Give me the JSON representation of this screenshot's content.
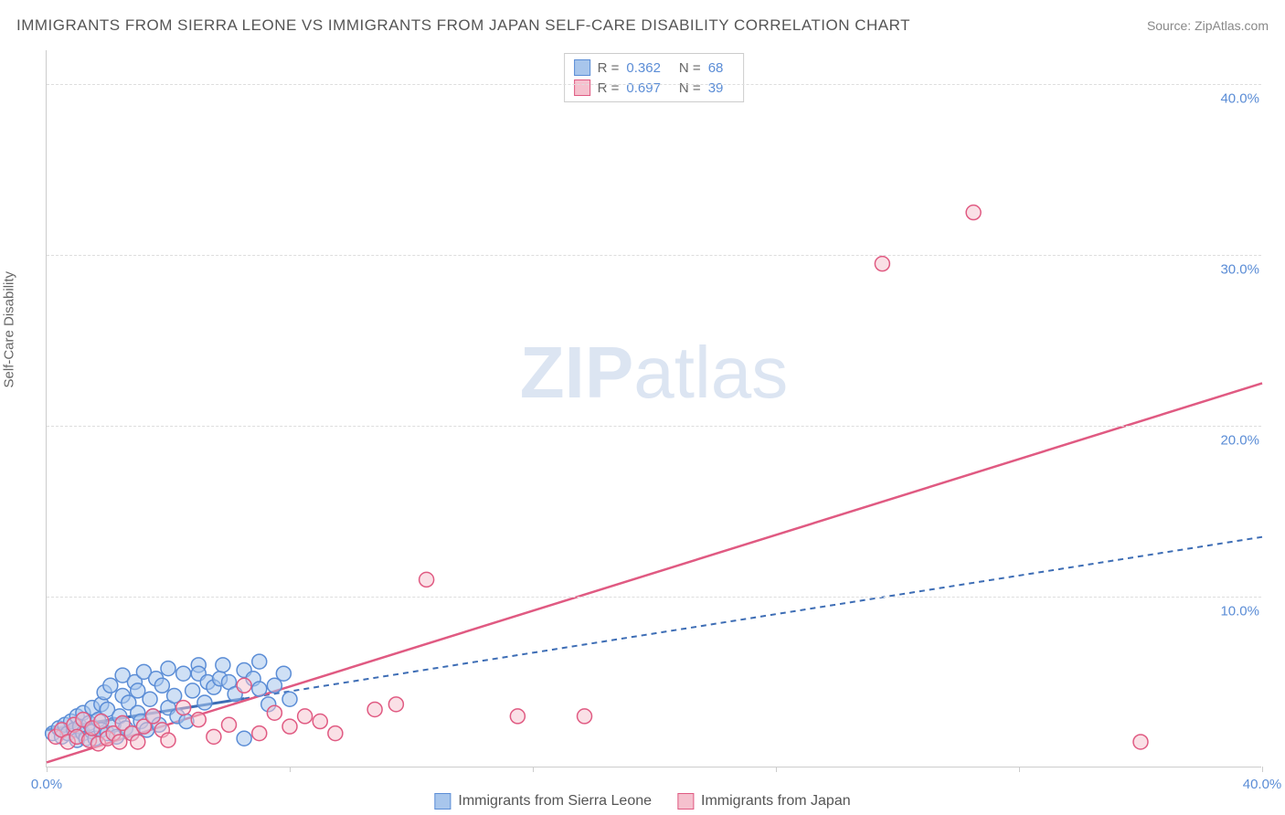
{
  "title": "IMMIGRANTS FROM SIERRA LEONE VS IMMIGRANTS FROM JAPAN SELF-CARE DISABILITY CORRELATION CHART",
  "source": "Source: ZipAtlas.com",
  "y_axis_label": "Self-Care Disability",
  "watermark": {
    "bold": "ZIP",
    "rest": "atlas"
  },
  "chart": {
    "type": "scatter",
    "xlim": [
      0,
      40
    ],
    "ylim": [
      0,
      42
    ],
    "x_ticks": [
      0,
      8,
      16,
      24,
      32,
      40
    ],
    "x_tick_labels": {
      "0": "0.0%",
      "40": "40.0%"
    },
    "y_ticks": [
      10,
      20,
      30,
      40
    ],
    "y_tick_labels": {
      "10": "10.0%",
      "20": "20.0%",
      "30": "30.0%",
      "40": "40.0%"
    },
    "grid_color": "#dddddd",
    "axis_color": "#cccccc",
    "background_color": "#ffffff",
    "marker_radius": 8,
    "marker_stroke_width": 1.5,
    "series": [
      {
        "name": "Immigrants from Sierra Leone",
        "fill_color": "#a8c6ec",
        "stroke_color": "#5b8dd6",
        "fill_opacity": 0.55,
        "trend": {
          "x1": 0,
          "y1": 2.2,
          "x2": 40,
          "y2": 13.5,
          "color": "#3d6db5",
          "width": 2,
          "dash": "6,5",
          "solid_until_x": 6.5
        },
        "points": [
          [
            0.2,
            2.0
          ],
          [
            0.4,
            2.3
          ],
          [
            0.5,
            1.8
          ],
          [
            0.6,
            2.5
          ],
          [
            0.7,
            2.0
          ],
          [
            0.8,
            2.7
          ],
          [
            0.9,
            2.2
          ],
          [
            1.0,
            3.0
          ],
          [
            1.0,
            1.6
          ],
          [
            1.1,
            2.4
          ],
          [
            1.2,
            2.0
          ],
          [
            1.2,
            3.2
          ],
          [
            1.3,
            1.7
          ],
          [
            1.4,
            2.6
          ],
          [
            1.5,
            3.5
          ],
          [
            1.5,
            2.1
          ],
          [
            1.6,
            1.7
          ],
          [
            1.7,
            2.8
          ],
          [
            1.8,
            3.7
          ],
          [
            1.8,
            2.2
          ],
          [
            1.9,
            4.4
          ],
          [
            2.0,
            2.0
          ],
          [
            2.0,
            3.4
          ],
          [
            2.1,
            4.8
          ],
          [
            2.2,
            2.5
          ],
          [
            2.3,
            1.8
          ],
          [
            2.4,
            3.0
          ],
          [
            2.5,
            4.2
          ],
          [
            2.5,
            5.4
          ],
          [
            2.6,
            2.3
          ],
          [
            2.7,
            3.8
          ],
          [
            2.8,
            2.0
          ],
          [
            2.9,
            5.0
          ],
          [
            3.0,
            3.2
          ],
          [
            3.0,
            4.5
          ],
          [
            3.1,
            2.7
          ],
          [
            3.2,
            5.6
          ],
          [
            3.3,
            2.2
          ],
          [
            3.4,
            4.0
          ],
          [
            3.5,
            3.0
          ],
          [
            3.6,
            5.2
          ],
          [
            3.7,
            2.5
          ],
          [
            3.8,
            4.8
          ],
          [
            4.0,
            3.5
          ],
          [
            4.0,
            5.8
          ],
          [
            4.2,
            4.2
          ],
          [
            4.3,
            3.0
          ],
          [
            4.5,
            5.5
          ],
          [
            4.6,
            2.7
          ],
          [
            4.8,
            4.5
          ],
          [
            5.0,
            6.0
          ],
          [
            5.0,
            5.5
          ],
          [
            5.2,
            3.8
          ],
          [
            5.3,
            5.0
          ],
          [
            5.5,
            4.7
          ],
          [
            5.7,
            5.2
          ],
          [
            5.8,
            6.0
          ],
          [
            6.0,
            5.0
          ],
          [
            6.2,
            4.3
          ],
          [
            6.5,
            5.7
          ],
          [
            6.5,
            1.7
          ],
          [
            6.8,
            5.2
          ],
          [
            7.0,
            4.6
          ],
          [
            7.0,
            6.2
          ],
          [
            7.3,
            3.7
          ],
          [
            7.5,
            4.8
          ],
          [
            7.8,
            5.5
          ],
          [
            8.0,
            4.0
          ]
        ]
      },
      {
        "name": "Immigrants from Japan",
        "fill_color": "#f5c1ce",
        "stroke_color": "#e05a82",
        "fill_opacity": 0.5,
        "trend": {
          "x1": 0,
          "y1": 0.3,
          "x2": 40,
          "y2": 22.5,
          "color": "#e05a82",
          "width": 2.5,
          "dash": null
        },
        "points": [
          [
            0.3,
            1.8
          ],
          [
            0.5,
            2.2
          ],
          [
            0.7,
            1.5
          ],
          [
            0.9,
            2.5
          ],
          [
            1.0,
            1.8
          ],
          [
            1.2,
            2.8
          ],
          [
            1.4,
            1.6
          ],
          [
            1.5,
            2.3
          ],
          [
            1.7,
            1.4
          ],
          [
            1.8,
            2.7
          ],
          [
            2.0,
            1.7
          ],
          [
            2.2,
            2.0
          ],
          [
            2.4,
            1.5
          ],
          [
            2.5,
            2.6
          ],
          [
            2.8,
            2.0
          ],
          [
            3.0,
            1.5
          ],
          [
            3.2,
            2.4
          ],
          [
            3.5,
            3.0
          ],
          [
            3.8,
            2.2
          ],
          [
            4.0,
            1.6
          ],
          [
            4.5,
            3.5
          ],
          [
            5.0,
            2.8
          ],
          [
            5.5,
            1.8
          ],
          [
            6.0,
            2.5
          ],
          [
            6.5,
            4.8
          ],
          [
            7.0,
            2.0
          ],
          [
            7.5,
            3.2
          ],
          [
            8.0,
            2.4
          ],
          [
            8.5,
            3.0
          ],
          [
            9.0,
            2.7
          ],
          [
            9.5,
            2.0
          ],
          [
            10.8,
            3.4
          ],
          [
            11.5,
            3.7
          ],
          [
            12.5,
            11.0
          ],
          [
            15.5,
            3.0
          ],
          [
            17.7,
            3.0
          ],
          [
            27.5,
            29.5
          ],
          [
            30.5,
            32.5
          ],
          [
            36.0,
            1.5
          ]
        ]
      }
    ]
  },
  "stats_legend": [
    {
      "swatch_fill": "#a8c6ec",
      "swatch_stroke": "#5b8dd6",
      "r_label": "R =",
      "r_value": "0.362",
      "n_label": "N =",
      "n_value": "68"
    },
    {
      "swatch_fill": "#f5c1ce",
      "swatch_stroke": "#e05a82",
      "r_label": "R =",
      "r_value": "0.697",
      "n_label": "N =",
      "n_value": "39"
    }
  ],
  "bottom_legend": [
    {
      "swatch_fill": "#a8c6ec",
      "swatch_stroke": "#5b8dd6",
      "label": "Immigrants from Sierra Leone"
    },
    {
      "swatch_fill": "#f5c1ce",
      "swatch_stroke": "#e05a82",
      "label": "Immigrants from Japan"
    }
  ],
  "colors": {
    "tick_label": "#5b8dd6",
    "title_text": "#555555",
    "source_text": "#888888"
  }
}
